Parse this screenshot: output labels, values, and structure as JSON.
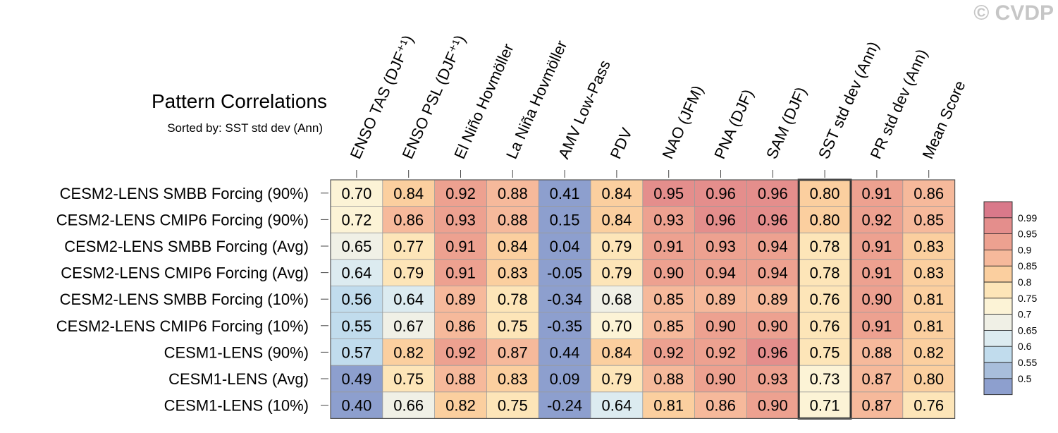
{
  "watermark": "© CVDP",
  "chart_data": {
    "type": "heatmap",
    "title": "Pattern Correlations",
    "subtitle": "Sorted by: SST std dev (Ann)",
    "columns": [
      "ENSO TAS (DJF⁺¹)",
      "ENSO PSL (DJF⁺¹)",
      "El Niño Hovmöller",
      "La Niña Hovmöller",
      "AMV Low-Pass",
      "PDV",
      "NAO (JFM)",
      "PNA (DJF)",
      "SAM (DJF)",
      "SST std dev (Ann)",
      "PR std dev (Ann)",
      "Mean Score"
    ],
    "rows": [
      "CESM2-LENS SMBB Forcing (90%)",
      "CESM2-LENS CMIP6 Forcing (90%)",
      "CESM2-LENS SMBB Forcing (Avg)",
      "CESM2-LENS CMIP6 Forcing (Avg)",
      "CESM2-LENS SMBB Forcing (10%)",
      "CESM2-LENS CMIP6 Forcing (10%)",
      "CESM1-LENS (90%)",
      "CESM1-LENS (Avg)",
      "CESM1-LENS (10%)"
    ],
    "values": [
      [
        "0.70",
        "0.84",
        "0.92",
        "0.88",
        "0.41",
        "0.84",
        "0.95",
        "0.96",
        "0.96",
        "0.80",
        "0.91",
        "0.86"
      ],
      [
        "0.72",
        "0.86",
        "0.93",
        "0.88",
        "0.15",
        "0.84",
        "0.93",
        "0.96",
        "0.96",
        "0.80",
        "0.92",
        "0.85"
      ],
      [
        "0.65",
        "0.77",
        "0.91",
        "0.84",
        "0.04",
        "0.79",
        "0.91",
        "0.93",
        "0.94",
        "0.78",
        "0.91",
        "0.83"
      ],
      [
        "0.64",
        "0.79",
        "0.91",
        "0.83",
        "-0.05",
        "0.79",
        "0.90",
        "0.94",
        "0.94",
        "0.78",
        "0.91",
        "0.83"
      ],
      [
        "0.56",
        "0.64",
        "0.89",
        "0.78",
        "-0.34",
        "0.68",
        "0.85",
        "0.89",
        "0.89",
        "0.76",
        "0.90",
        "0.81"
      ],
      [
        "0.55",
        "0.67",
        "0.86",
        "0.75",
        "-0.35",
        "0.70",
        "0.85",
        "0.90",
        "0.90",
        "0.76",
        "0.91",
        "0.81"
      ],
      [
        "0.57",
        "0.82",
        "0.92",
        "0.87",
        "0.44",
        "0.84",
        "0.92",
        "0.92",
        "0.96",
        "0.75",
        "0.88",
        "0.82"
      ],
      [
        "0.49",
        "0.75",
        "0.88",
        "0.83",
        "0.09",
        "0.79",
        "0.88",
        "0.90",
        "0.93",
        "0.73",
        "0.87",
        "0.80"
      ],
      [
        "0.40",
        "0.66",
        "0.82",
        "0.75",
        "-0.24",
        "0.64",
        "0.81",
        "0.86",
        "0.90",
        "0.71",
        "0.87",
        "0.76"
      ]
    ],
    "highlighted_column": "SST std dev (Ann)",
    "colorbar": {
      "labels": [
        "0.99",
        "0.95",
        "0.9",
        "0.85",
        "0.8",
        "0.75",
        "0.7",
        "0.65",
        "0.6",
        "0.55",
        "0.5"
      ],
      "colors": [
        "#d9798a",
        "#e48e8c",
        "#eda190",
        "#f6b99b",
        "#fbcf9f",
        "#fde5b8",
        "#fcf3d6",
        "#f0f0e6",
        "#dcebf0",
        "#c1dced",
        "#a8bedb",
        "#8d9fce"
      ]
    }
  }
}
